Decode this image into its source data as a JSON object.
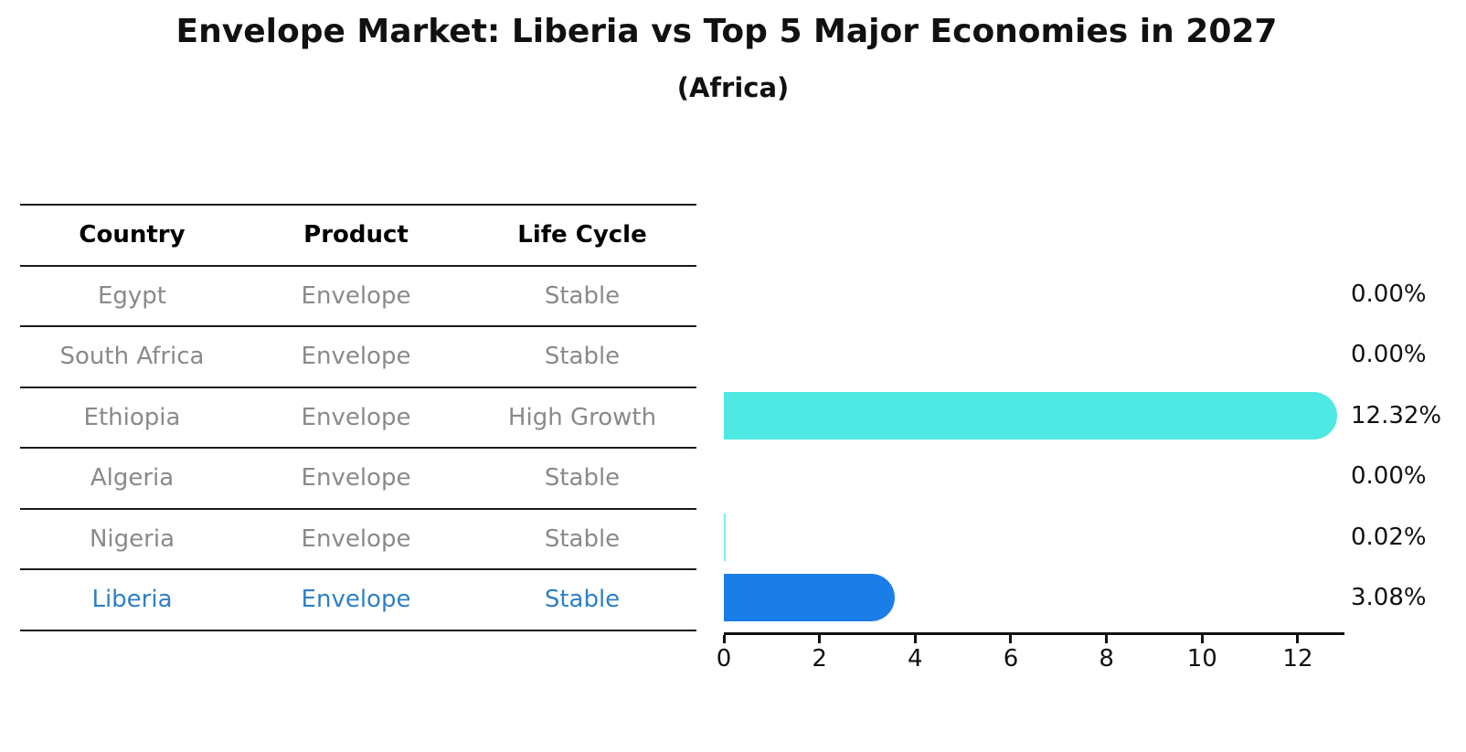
{
  "title": "Envelope Market: Liberia vs Top 5 Major Economies in 2027",
  "subtitle": "(Africa)",
  "table": {
    "headers": [
      "Country",
      "Product",
      "Life Cycle"
    ],
    "rows": [
      {
        "country": "Egypt",
        "product": "Envelope",
        "life_cycle": "Stable",
        "highlight": false
      },
      {
        "country": "South Africa",
        "product": "Envelope",
        "life_cycle": "Stable",
        "highlight": false
      },
      {
        "country": "Ethiopia",
        "product": "Envelope",
        "life_cycle": "High Growth",
        "highlight": false
      },
      {
        "country": "Algeria",
        "product": "Envelope",
        "life_cycle": "Stable",
        "highlight": false
      },
      {
        "country": "Nigeria",
        "product": "Envelope",
        "life_cycle": "Stable",
        "highlight": false
      },
      {
        "country": "Liberia",
        "product": "Envelope",
        "life_cycle": "Stable",
        "highlight": true
      }
    ]
  },
  "chart_data": {
    "type": "bar",
    "orientation": "horizontal",
    "title": "Envelope Market: Liberia vs Top 5 Major Economies in 2027",
    "subtitle": "(Africa)",
    "categories": [
      "Egypt",
      "South Africa",
      "Ethiopia",
      "Algeria",
      "Nigeria",
      "Liberia"
    ],
    "values": [
      0.0,
      0.0,
      12.32,
      0.0,
      0.02,
      3.08
    ],
    "value_labels": [
      "0.00%",
      "0.00%",
      "12.32%",
      "0.00%",
      "0.02%",
      "3.08%"
    ],
    "xlabel": "",
    "ylabel": "",
    "xlim": [
      0,
      13
    ],
    "x_ticks": [
      0,
      2,
      4,
      6,
      8,
      10,
      12
    ],
    "grid": false,
    "legend": "none",
    "highlight_category": "Liberia",
    "highlight_border_style": "dotted",
    "colors": {
      "default_bar": "#4de9e2",
      "highlight_bar": "#1b7ee8",
      "highlight_text": "#2e80c6",
      "row_text": "#8a8a8a",
      "axis": "#111111"
    }
  }
}
